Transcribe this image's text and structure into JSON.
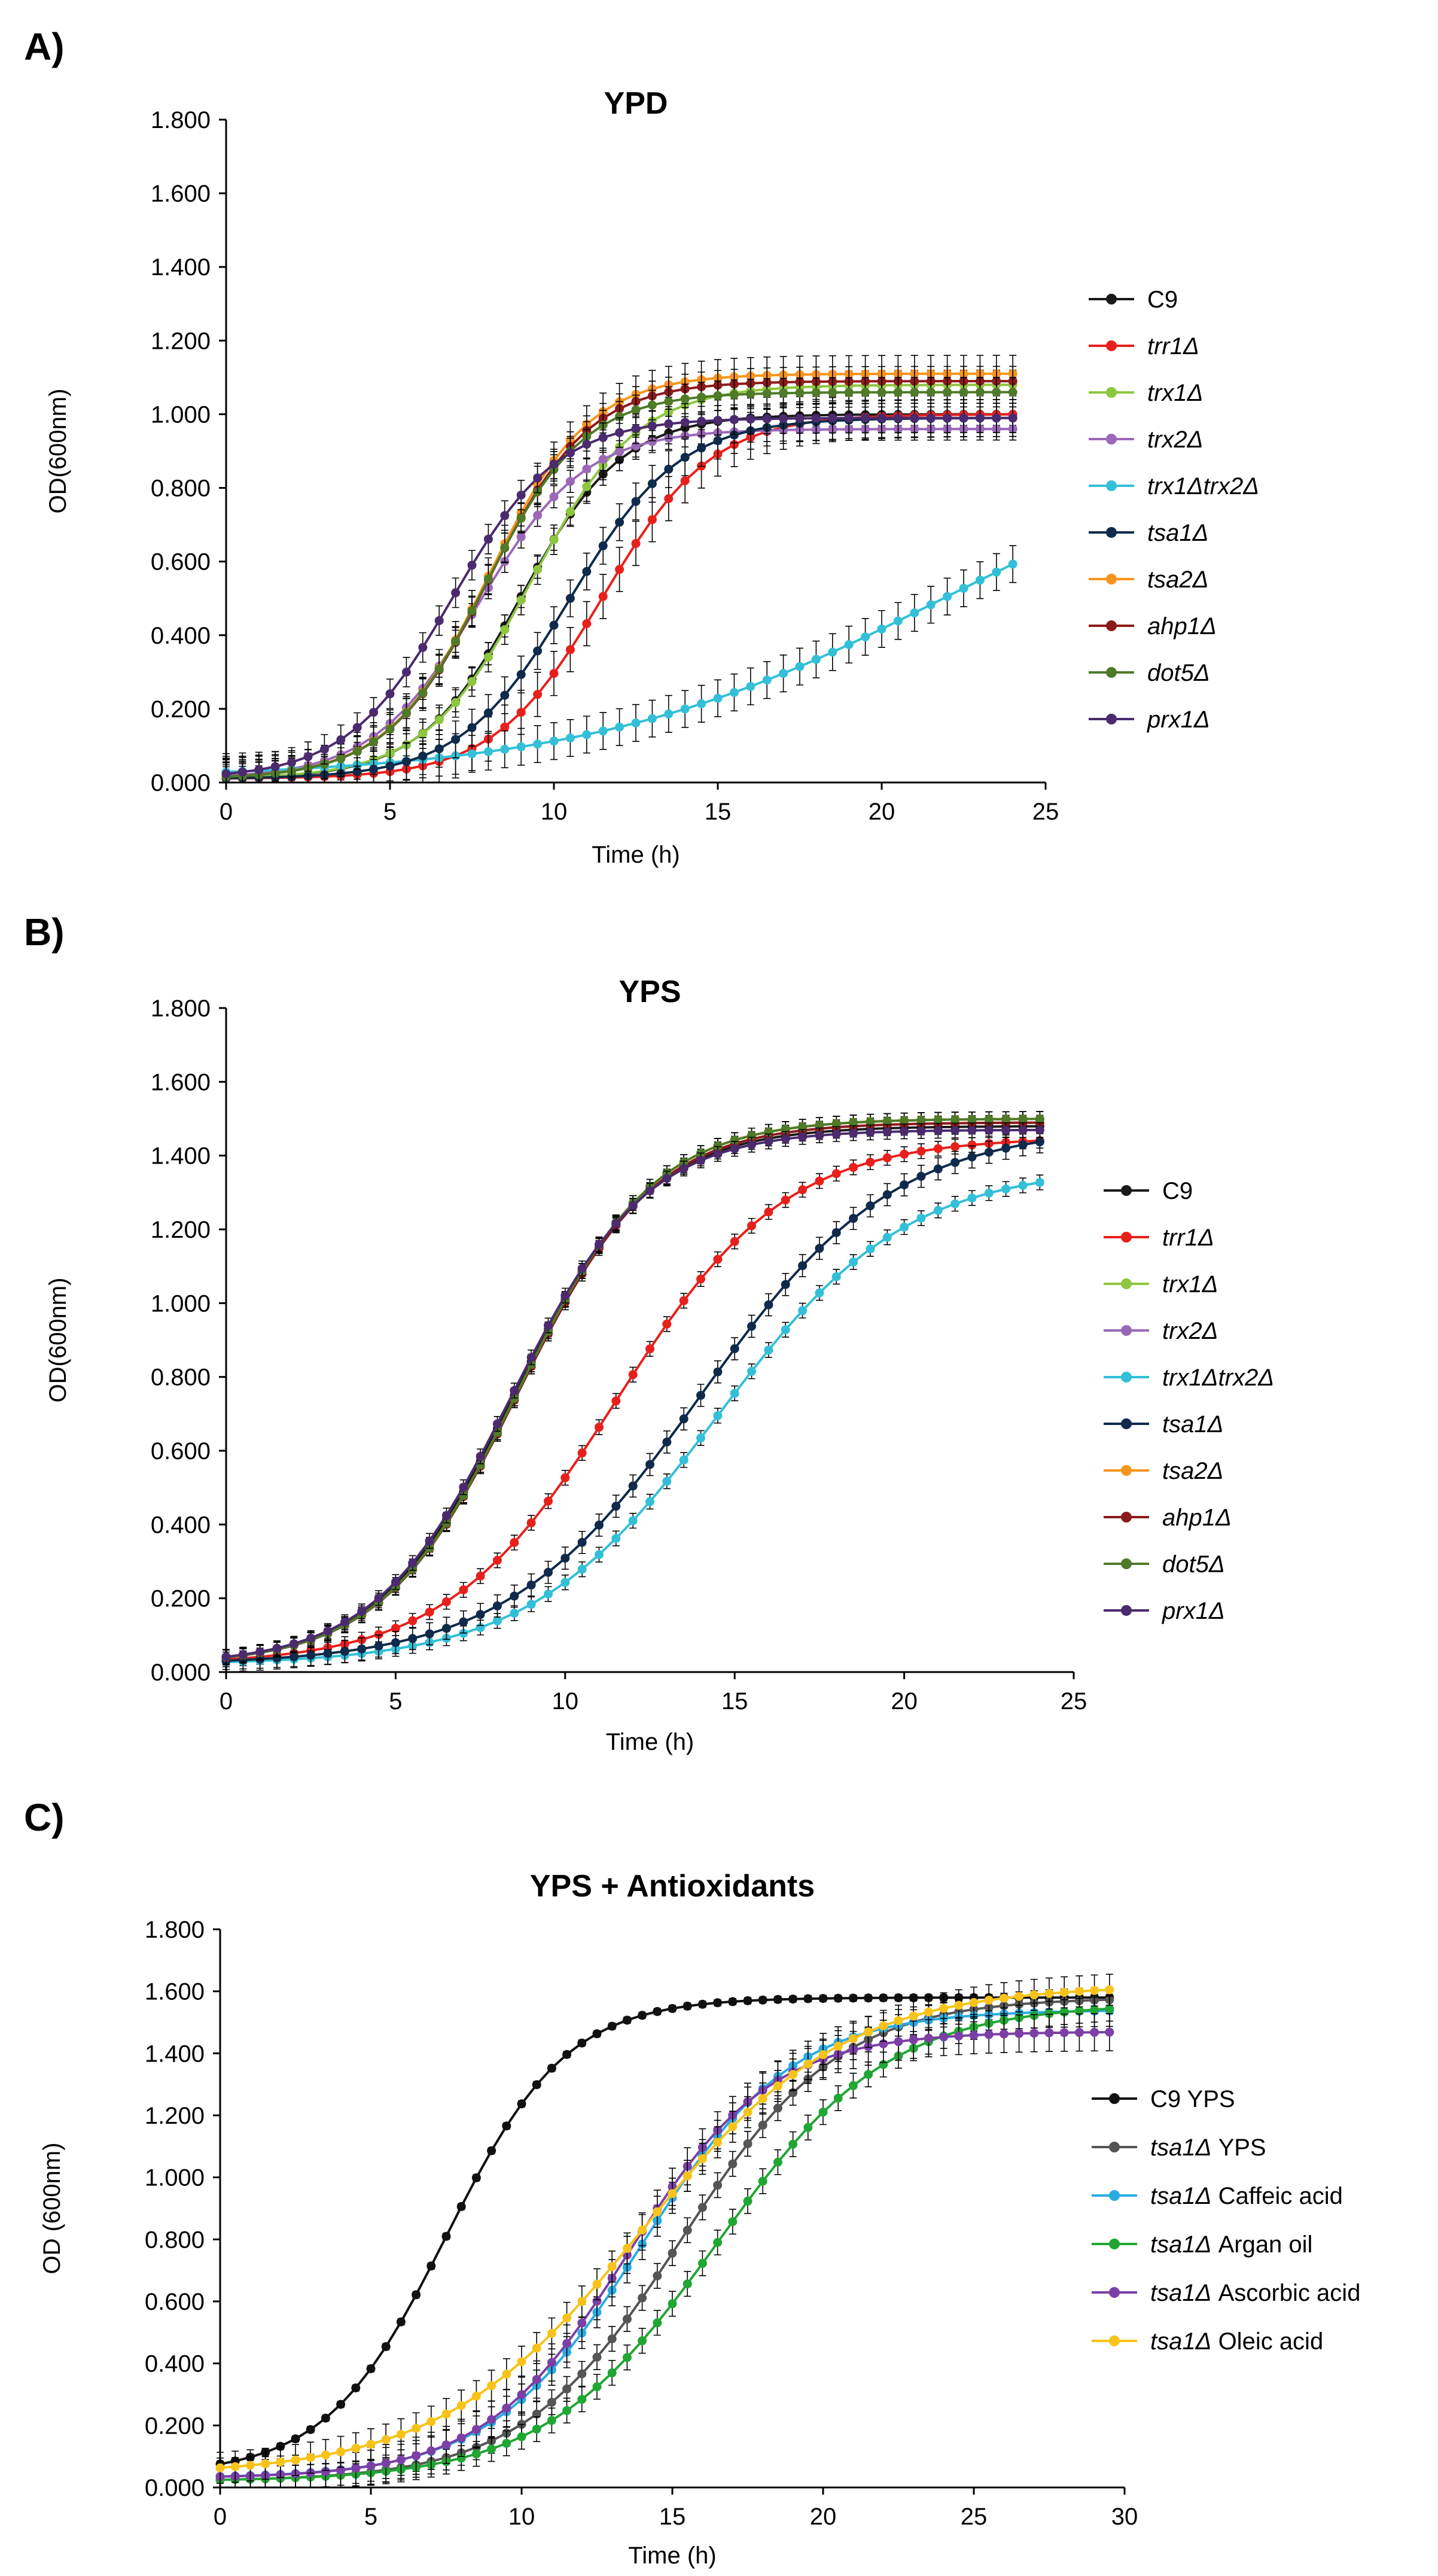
{
  "figure": {
    "panel_labels": [
      "A)",
      "B)",
      "C)"
    ]
  },
  "chart_data": [
    {
      "type": "line",
      "panel": "A)",
      "title": "YPD",
      "xlabel": "Time (h)",
      "ylabel": "OD(600nm)",
      "xlim": [
        0,
        25
      ],
      "ylim": [
        0,
        1.8
      ],
      "x_ticks": [
        "0",
        "5",
        "10",
        "15",
        "20",
        "25"
      ],
      "y_ticks": [
        "0.000",
        "0.200",
        "0.400",
        "0.600",
        "0.800",
        "1.000",
        "1.200",
        "1.400",
        "1.600",
        "1.800"
      ],
      "x_max_data": 24,
      "error_bars": true,
      "series": [
        {
          "name": "C9",
          "italic": false,
          "color": "#1a1a1a",
          "start": 0.01,
          "plateau": 1.0,
          "midpoint": 9.0,
          "rate": 0.65,
          "err": 0.03
        },
        {
          "name": "trr1Δ",
          "italic": true,
          "color": "#e8201c",
          "start": 0.01,
          "plateau": 1.0,
          "midpoint": 11.5,
          "rate": 0.6,
          "err": 0.06
        },
        {
          "name": "trx1Δ",
          "italic": true,
          "color": "#8dc63f",
          "start": 0.01,
          "plateau": 1.08,
          "midpoint": 9.3,
          "rate": 0.62,
          "err": 0.04
        },
        {
          "name": "trx2Δ",
          "italic": true,
          "color": "#9b68b8",
          "start": 0.01,
          "plateau": 0.96,
          "midpoint": 7.7,
          "rate": 0.62,
          "err": 0.03
        },
        {
          "name": "trx1Δtrx2Δ",
          "italic": true,
          "color": "#33bfd8",
          "start": 0.01,
          "plateau": 1.0,
          "midpoint": 22.0,
          "rate": 0.18,
          "err": 0.05
        },
        {
          "name": "tsa1Δ",
          "italic": true,
          "color": "#0f2a4a",
          "start": 0.01,
          "plateau": 0.99,
          "midpoint": 10.5,
          "rate": 0.6,
          "err": 0.05
        },
        {
          "name": "tsa2Δ",
          "italic": true,
          "color": "#f7941d",
          "start": 0.01,
          "plateau": 1.11,
          "midpoint": 8.0,
          "rate": 0.65,
          "err": 0.05
        },
        {
          "name": "ahp1Δ",
          "italic": true,
          "color": "#8b1a1a",
          "start": 0.01,
          "plateau": 1.09,
          "midpoint": 8.0,
          "rate": 0.65,
          "err": 0.04
        },
        {
          "name": "dot5Δ",
          "italic": true,
          "color": "#4f7a28",
          "start": 0.01,
          "plateau": 1.06,
          "midpoint": 7.9,
          "rate": 0.66,
          "err": 0.04
        },
        {
          "name": "prx1Δ",
          "italic": true,
          "color": "#4b2a6e",
          "start": 0.01,
          "plateau": 0.99,
          "midpoint": 6.9,
          "rate": 0.62,
          "err": 0.04
        }
      ]
    },
    {
      "type": "line",
      "panel": "B)",
      "title": "YPS",
      "xlabel": "Time (h)",
      "ylabel": "OD(600nm)",
      "xlim": [
        0,
        25
      ],
      "ylim": [
        0,
        1.8
      ],
      "x_ticks": [
        "0",
        "5",
        "10",
        "15",
        "20",
        "25"
      ],
      "y_ticks": [
        "0.000",
        "0.200",
        "0.400",
        "0.600",
        "0.800",
        "1.000",
        "1.200",
        "1.400",
        "1.600",
        "1.800"
      ],
      "x_max_data": 24,
      "error_bars": true,
      "series": [
        {
          "name": "C9",
          "italic": false,
          "color": "#1a1a1a",
          "start": 0.02,
          "plateau": 1.48,
          "midpoint": 8.5,
          "rate": 0.5,
          "err": 0.02
        },
        {
          "name": "trr1Δ",
          "italic": true,
          "color": "#e8201c",
          "start": 0.02,
          "plateau": 1.45,
          "midpoint": 11.5,
          "rate": 0.4,
          "err": 0.02
        },
        {
          "name": "trx1Δ",
          "italic": true,
          "color": "#8dc63f",
          "start": 0.02,
          "plateau": 1.5,
          "midpoint": 8.6,
          "rate": 0.5,
          "err": 0.02
        },
        {
          "name": "trx2Δ",
          "italic": true,
          "color": "#9b68b8",
          "start": 0.02,
          "plateau": 1.49,
          "midpoint": 8.6,
          "rate": 0.5,
          "err": 0.02
        },
        {
          "name": "trx1Δtrx2Δ",
          "italic": true,
          "color": "#33bfd8",
          "start": 0.02,
          "plateau": 1.37,
          "midpoint": 14.5,
          "rate": 0.36,
          "err": 0.02
        },
        {
          "name": "tsa1Δ",
          "italic": true,
          "color": "#0f2a4a",
          "start": 0.02,
          "plateau": 1.48,
          "midpoint": 14.0,
          "rate": 0.35,
          "err": 0.03
        },
        {
          "name": "tsa2Δ",
          "italic": true,
          "color": "#f7941d",
          "start": 0.02,
          "plateau": 1.5,
          "midpoint": 8.6,
          "rate": 0.5,
          "err": 0.02
        },
        {
          "name": "ahp1Δ",
          "italic": true,
          "color": "#8b1a1a",
          "start": 0.02,
          "plateau": 1.49,
          "midpoint": 8.6,
          "rate": 0.5,
          "err": 0.02
        },
        {
          "name": "dot5Δ",
          "italic": true,
          "color": "#4f7a28",
          "start": 0.02,
          "plateau": 1.5,
          "midpoint": 8.6,
          "rate": 0.5,
          "err": 0.02
        },
        {
          "name": "prx1Δ",
          "italic": true,
          "color": "#4b2a6e",
          "start": 0.02,
          "plateau": 1.47,
          "midpoint": 8.4,
          "rate": 0.5,
          "err": 0.02
        }
      ]
    },
    {
      "type": "line",
      "panel": "C)",
      "title": "YPS + Antioxidants",
      "xlabel": "Time (h)",
      "ylabel": "OD (600nm)",
      "xlim": [
        0,
        30
      ],
      "ylim": [
        0,
        1.8
      ],
      "x_ticks": [
        "0",
        "5",
        "10",
        "15",
        "20",
        "25",
        "30"
      ],
      "y_ticks": [
        "0.000",
        "0.200",
        "0.400",
        "0.600",
        "0.800",
        "1.000",
        "1.200",
        "1.400",
        "1.600",
        "1.800"
      ],
      "x_max_data": 29.5,
      "error_bars": true,
      "series": [
        {
          "name_italic": "",
          "name_plain": "C9 YPS",
          "color": "#111111",
          "start": 0.04,
          "plateau": 1.58,
          "midpoint": 7.5,
          "rate": 0.5,
          "err": 0.01
        },
        {
          "name_italic": "tsa1Δ",
          "name_plain": " YPS",
          "color": "#555555",
          "start": 0.02,
          "plateau": 1.58,
          "midpoint": 15.3,
          "rate": 0.38,
          "err": 0.04
        },
        {
          "name_italic": "tsa1Δ",
          "name_plain": " Caffeic acid",
          "color": "#29abe2",
          "start": 0.03,
          "plateau": 1.54,
          "midpoint": 14.0,
          "rate": 0.4,
          "err": 0.05
        },
        {
          "name_italic": "tsa1Δ",
          "name_plain": " Argan oil",
          "color": "#21a634",
          "start": 0.02,
          "plateau": 1.56,
          "midpoint": 16.5,
          "rate": 0.35,
          "err": 0.04
        },
        {
          "name_italic": "tsa1Δ",
          "name_plain": " Ascorbic acid",
          "color": "#7b3fa6",
          "start": 0.03,
          "plateau": 1.47,
          "midpoint": 13.5,
          "rate": 0.42,
          "err": 0.06
        },
        {
          "name_italic": "tsa1Δ",
          "name_plain": " Oleic acid",
          "color": "#f7c31a",
          "start": 0.04,
          "plateau": 1.62,
          "midpoint": 14.0,
          "rate": 0.3,
          "err": 0.05
        }
      ]
    }
  ]
}
